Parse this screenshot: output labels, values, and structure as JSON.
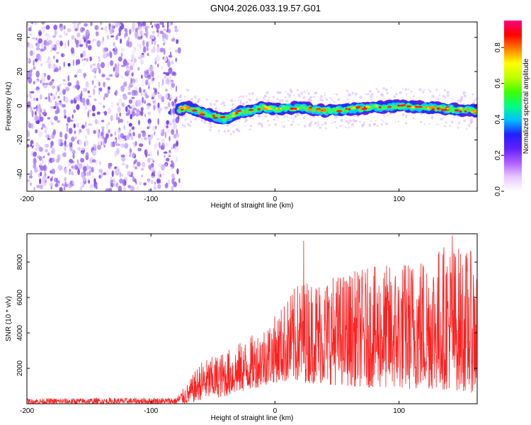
{
  "title": "GN04.2026.033.19.57.G01",
  "chart_data": [
    {
      "type": "heatmap",
      "name": "spectrogram",
      "xlabel": "Height of straight line (km)",
      "ylabel": "Frequency (Hz)",
      "xlim": [
        -200,
        163
      ],
      "ylim": [
        -50,
        49
      ],
      "xticks": [
        -200,
        -100,
        0,
        100
      ],
      "yticks": [
        -40,
        -20,
        0,
        20,
        40
      ],
      "noise_region_x": [
        -200,
        -77
      ],
      "trace": [
        {
          "x": -77,
          "y": -2
        },
        {
          "x": -70,
          "y": -1
        },
        {
          "x": -60,
          "y": -4
        },
        {
          "x": -50,
          "y": -6
        },
        {
          "x": -40,
          "y": -8
        },
        {
          "x": -30,
          "y": -4
        },
        {
          "x": -20,
          "y": -3
        },
        {
          "x": -10,
          "y": -1
        },
        {
          "x": 0,
          "y": -2
        },
        {
          "x": 20,
          "y": -1
        },
        {
          "x": 40,
          "y": -3
        },
        {
          "x": 60,
          "y": -2
        },
        {
          "x": 80,
          "y": -1
        },
        {
          "x": 100,
          "y": 0
        },
        {
          "x": 120,
          "y": -1
        },
        {
          "x": 140,
          "y": -2
        },
        {
          "x": 163,
          "y": -3
        }
      ],
      "colorbar": {
        "label": "Normalized spectral amplitude",
        "range": [
          0,
          0.95
        ],
        "ticks": [
          0.0,
          0.2,
          0.4,
          0.6,
          0.8
        ],
        "tick_labels": [
          "0.0",
          "0.2",
          "0.4",
          "0.6",
          "0.8"
        ],
        "colors": [
          "#ffffff",
          "#e8c8ff",
          "#b060ff",
          "#6020ff",
          "#2020ff",
          "#00c0ff",
          "#00ff80",
          "#40ff00",
          "#c0ff00",
          "#ffff00",
          "#ff8000",
          "#ff0000",
          "#ff0080"
        ]
      }
    },
    {
      "type": "line",
      "name": "snr",
      "color": "#ff2020",
      "xlabel": "Height of straight line (km)",
      "ylabel": "SNR (10 * v/v)",
      "xlim": [
        -200,
        163
      ],
      "ylim": [
        0,
        9600
      ],
      "xticks": [
        -200,
        -100,
        0,
        100
      ],
      "yticks": [
        2000,
        4000,
        6000,
        8000
      ],
      "envelope": [
        {
          "x": -200,
          "lo": 0,
          "hi": 300
        },
        {
          "x": -80,
          "lo": 0,
          "hi": 350
        },
        {
          "x": -70,
          "lo": 0,
          "hi": 1200
        },
        {
          "x": -60,
          "lo": 200,
          "hi": 2400
        },
        {
          "x": -40,
          "lo": 400,
          "hi": 3000
        },
        {
          "x": -20,
          "lo": 800,
          "hi": 3800
        },
        {
          "x": 0,
          "lo": 1200,
          "hi": 5000
        },
        {
          "x": 20,
          "lo": 1200,
          "hi": 7000
        },
        {
          "x": 60,
          "lo": 1000,
          "hi": 7500
        },
        {
          "x": 100,
          "lo": 800,
          "hi": 8000
        },
        {
          "x": 140,
          "lo": 800,
          "hi": 9200
        },
        {
          "x": 163,
          "lo": 600,
          "hi": 8500
        }
      ],
      "peaks": [
        {
          "x": 23,
          "y": 9200
        },
        {
          "x": 143,
          "y": 9500
        },
        {
          "x": 163,
          "y": 8300
        }
      ]
    }
  ]
}
